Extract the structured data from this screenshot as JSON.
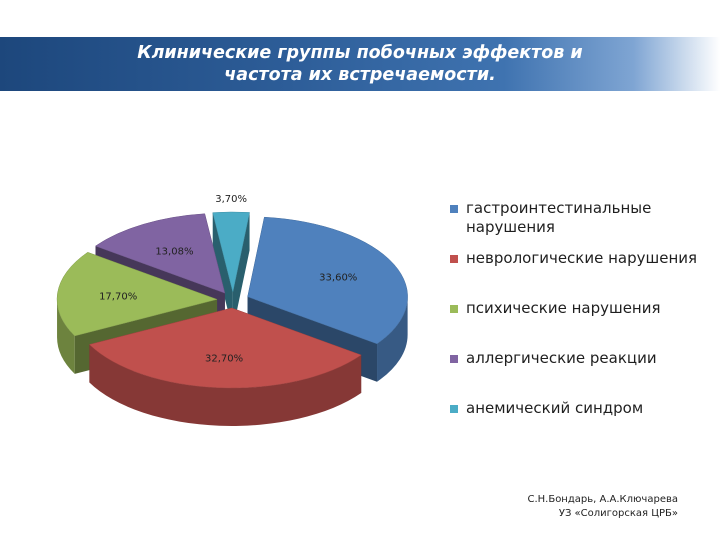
{
  "title": {
    "line1": "Клинические группы  побочных эффектов  и",
    "line2": "частота их встречаемости."
  },
  "footer": {
    "line1": "С.Н.Бондарь, А.А.Ключарева",
    "line2": "УЗ «Солигорская ЦРБ»"
  },
  "chart_data": {
    "type": "pie",
    "style": "3d-exploded",
    "legend_position": "right",
    "slices": [
      {
        "label": "гастроинтестинальные нарушения",
        "value": 33.6,
        "display": "33,60%",
        "color": "#4f81bd"
      },
      {
        "label": "неврологические нарушения",
        "value": 32.7,
        "display": "32,70%",
        "color": "#c0504d"
      },
      {
        "label": "психические нарушения",
        "value": 17.7,
        "display": "17,70%",
        "color": "#9bbb59"
      },
      {
        "label": "аллергические реакции",
        "value": 13.08,
        "display": "13,08%",
        "color": "#8064a2"
      },
      {
        "label": "анемический синдром",
        "value": 3.7,
        "display": "3,70%",
        "color": "#4bacc6"
      }
    ]
  }
}
